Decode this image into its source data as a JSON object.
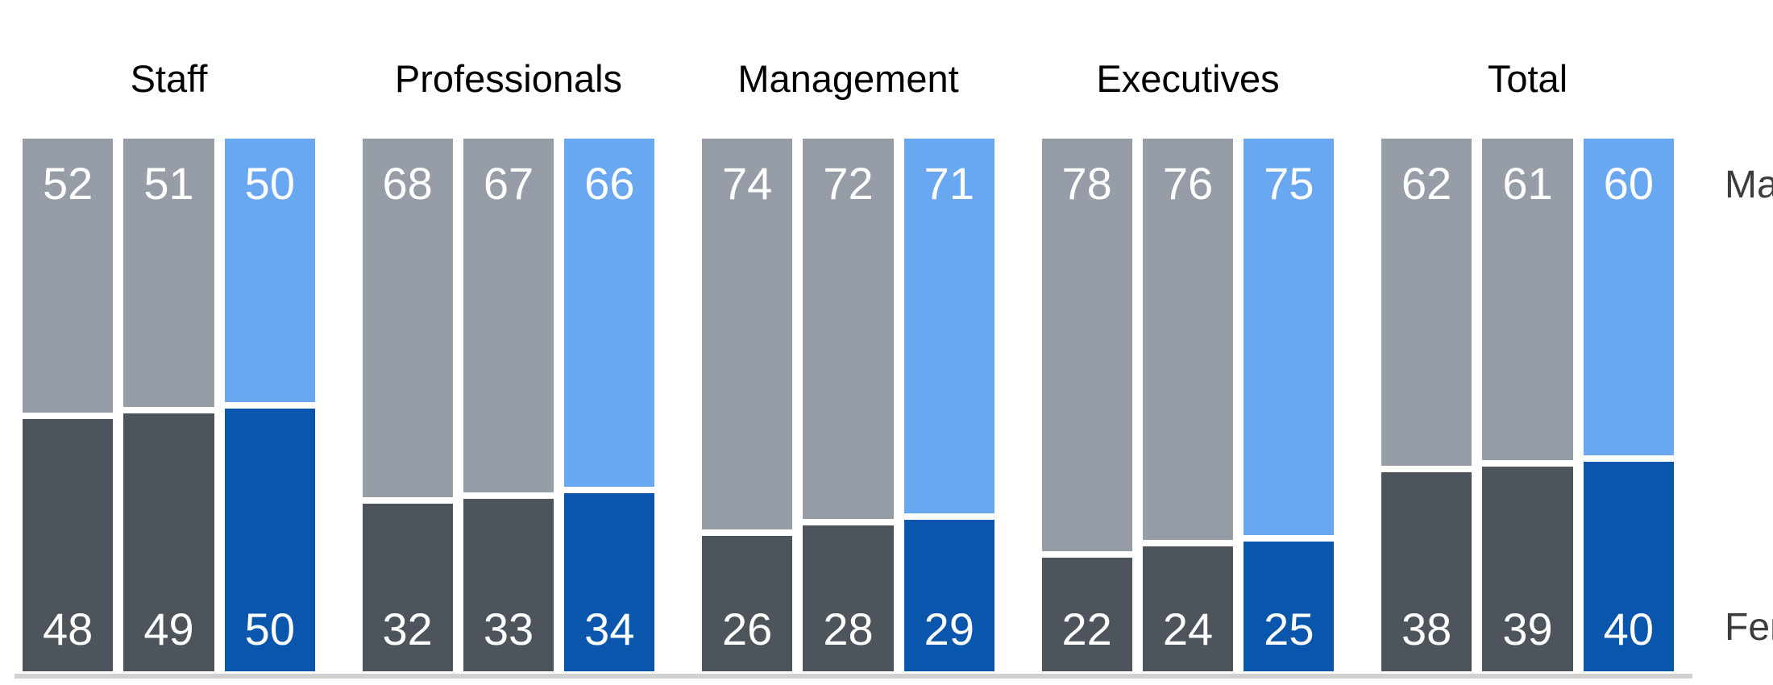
{
  "chart_data": {
    "type": "bar",
    "variant": "100-percent-stacked-columns",
    "orientation": "vertical",
    "title": "",
    "categories": [
      "Staff",
      "Professionals",
      "Management",
      "Executives",
      "Total"
    ],
    "bars_per_category": 3,
    "highlighted_bar_index": 2,
    "value_range": [
      0,
      100
    ],
    "grid": false,
    "legend_position": "right",
    "series": [
      {
        "name": "Male",
        "position": "top",
        "values": [
          [
            52,
            51,
            50
          ],
          [
            68,
            67,
            66
          ],
          [
            74,
            72,
            71
          ],
          [
            78,
            76,
            75
          ],
          [
            62,
            61,
            60
          ]
        ]
      },
      {
        "name": "Female",
        "position": "bottom",
        "values": [
          [
            48,
            49,
            50
          ],
          [
            32,
            33,
            34
          ],
          [
            26,
            28,
            29
          ],
          [
            22,
            24,
            25
          ],
          [
            38,
            39,
            40
          ]
        ]
      }
    ],
    "colors": {
      "male_gray": "#979da7",
      "female_gray": "#4e545c",
      "male_highlight": "#6aa7f1",
      "female_highlight": "#0b56ad",
      "baseline": "#d1d1d1",
      "bar_value_text": "#ffffff",
      "category_title_text": "#000000",
      "series_label_text": "#3c3c3c"
    }
  },
  "series_labels": {
    "male": "Male",
    "female": "Female"
  }
}
